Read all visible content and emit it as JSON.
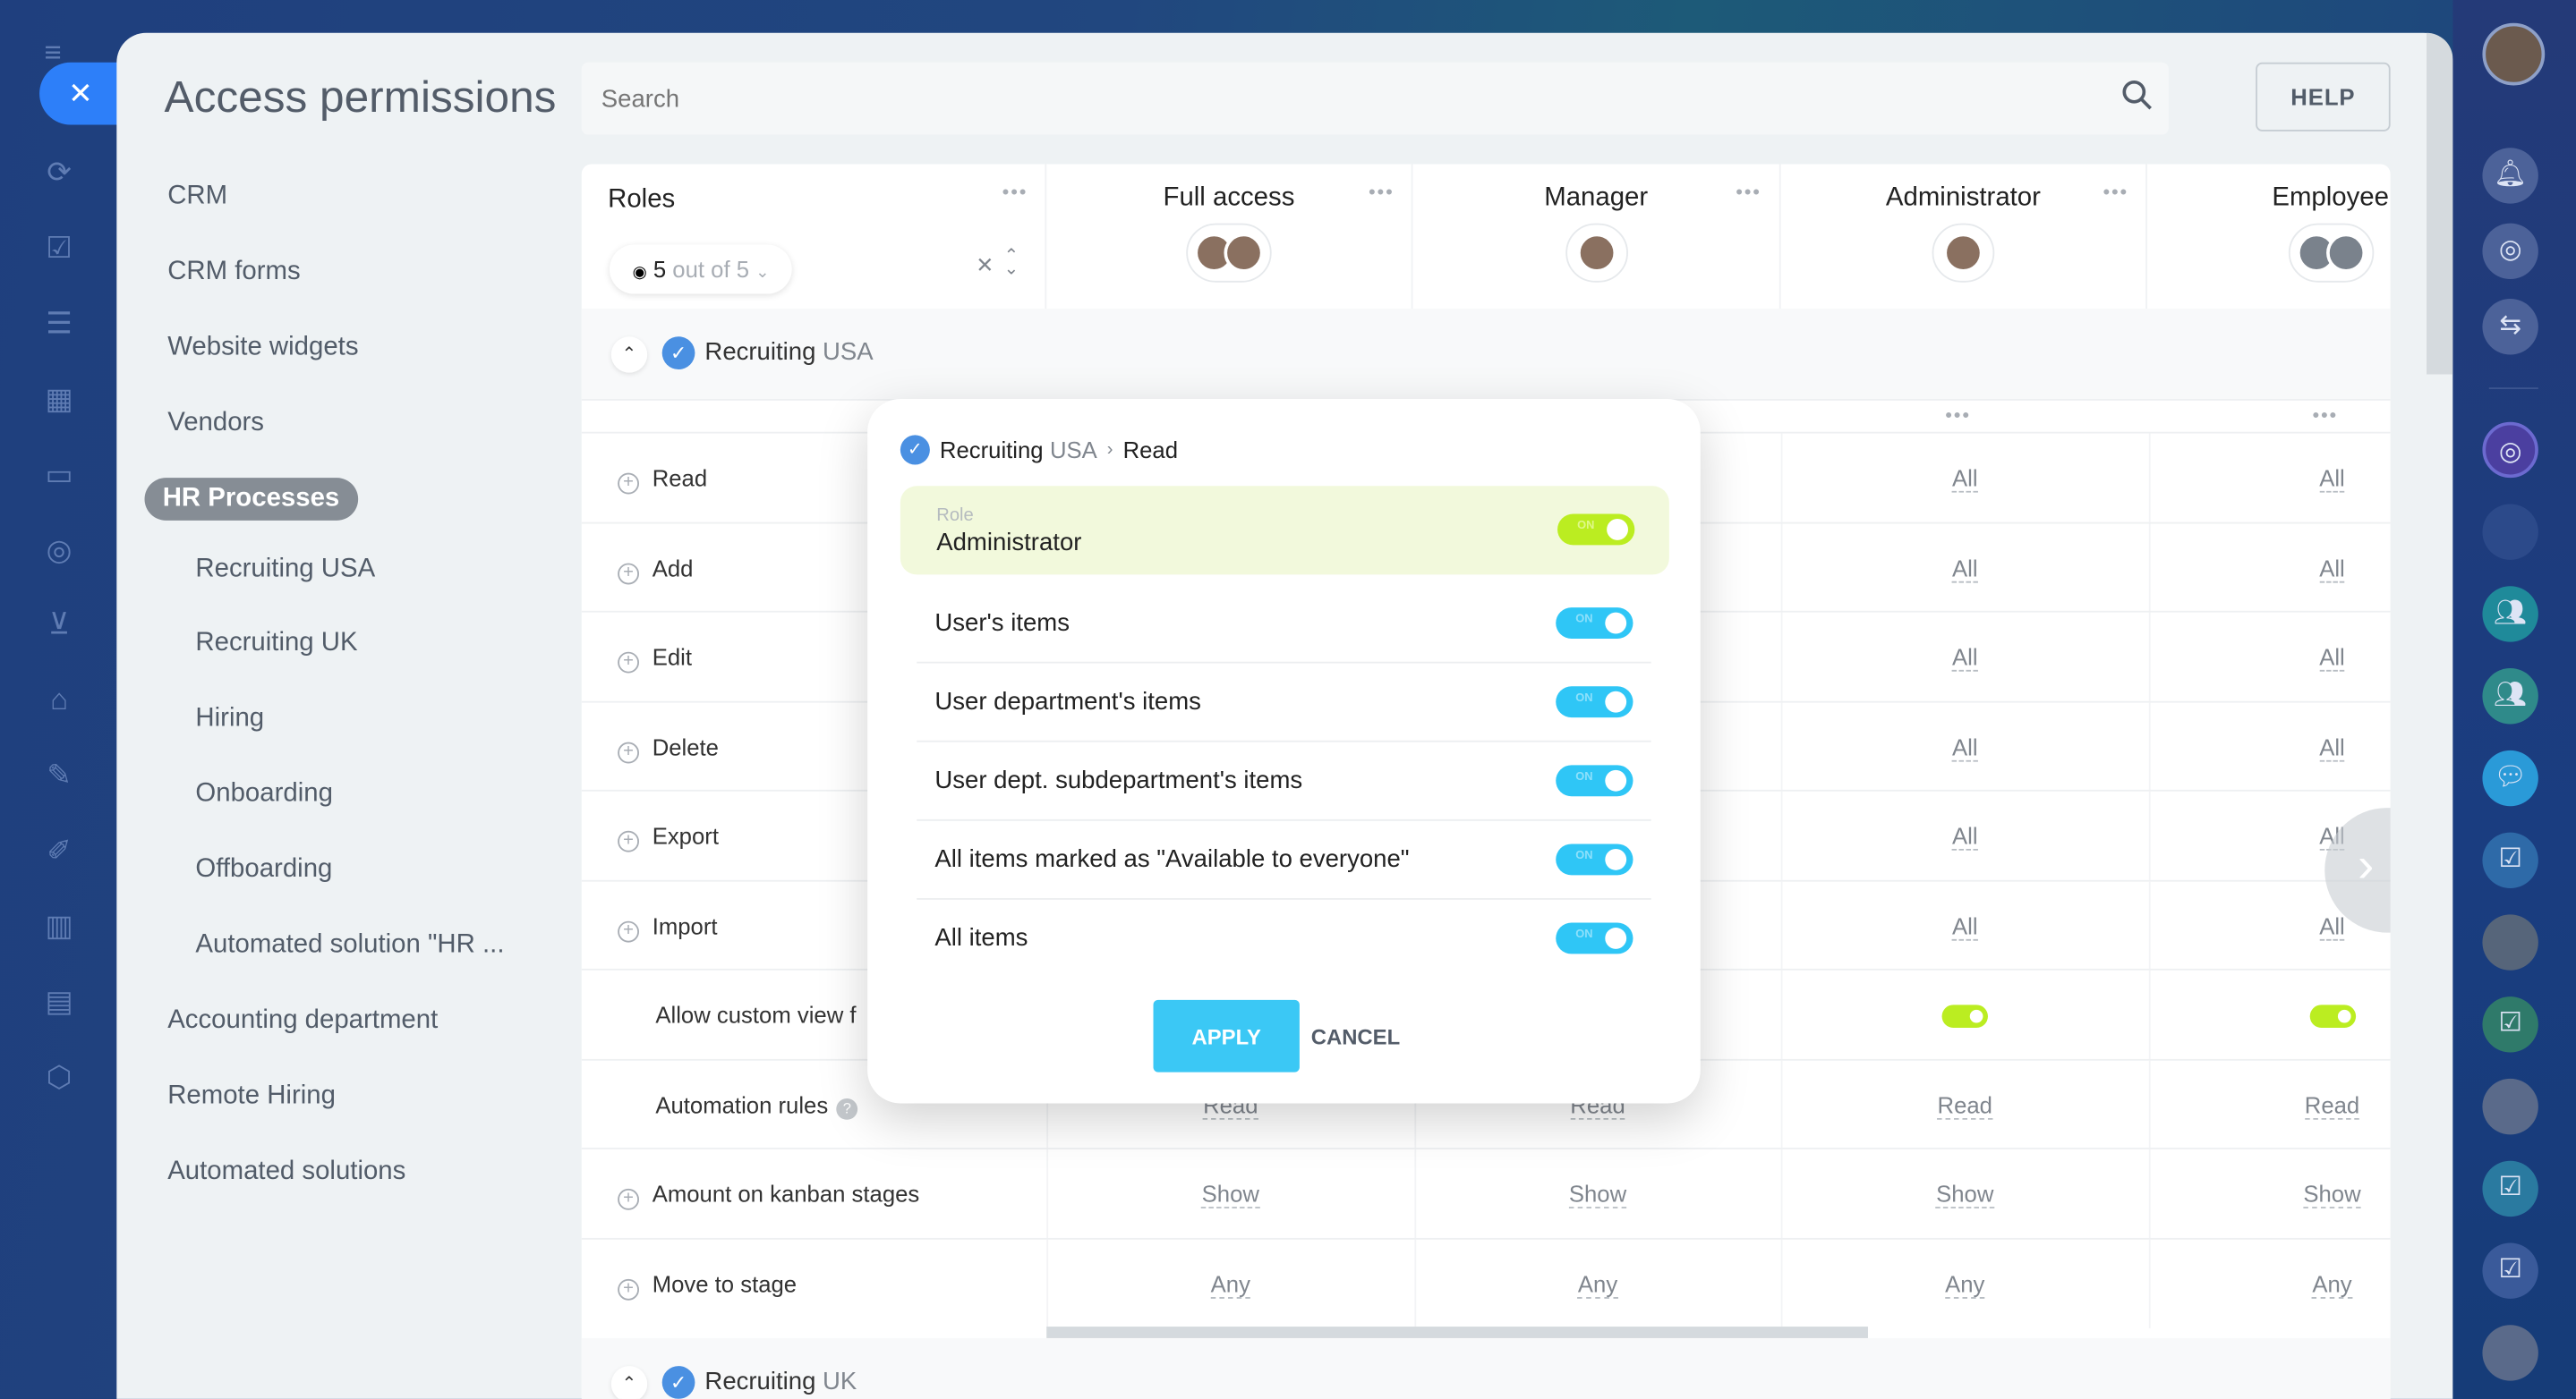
{
  "title": "Access permissions",
  "search": {
    "placeholder": "Search"
  },
  "help_label": "HELP",
  "menu": [
    {
      "label": "CRM",
      "level": 0
    },
    {
      "label": "CRM forms",
      "level": 0
    },
    {
      "label": "Website widgets",
      "level": 0
    },
    {
      "label": "Vendors",
      "level": 0
    },
    {
      "label": "HR Processes",
      "level": 0,
      "active": true
    },
    {
      "label": "Recruiting USA",
      "level": 1
    },
    {
      "label": "Recruiting UK",
      "level": 1
    },
    {
      "label": "Hiring",
      "level": 1
    },
    {
      "label": "Onboarding",
      "level": 1
    },
    {
      "label": "Offboarding",
      "level": 1
    },
    {
      "label": "Automated solution \"HR ...",
      "level": 1
    },
    {
      "label": "Accounting department",
      "level": 0
    },
    {
      "label": "Remote Hiring",
      "level": 0
    },
    {
      "label": "Automated solutions",
      "level": 0
    }
  ],
  "table": {
    "roles_label": "Roles",
    "filter": {
      "count": "5",
      "suffix": "out of 5"
    },
    "columns": [
      {
        "name": "Full access"
      },
      {
        "name": "Manager"
      },
      {
        "name": "Administrator"
      },
      {
        "name": "Employee"
      }
    ],
    "sections": [
      {
        "title": "Recruiting",
        "region": "USA"
      },
      {
        "title": "Recruiting",
        "region": "UK"
      }
    ],
    "rows": [
      {
        "label": "Read",
        "plus": true,
        "cells": [
          "",
          "",
          "All",
          "All"
        ]
      },
      {
        "label": "Add",
        "plus": true,
        "cells": [
          "",
          "",
          "All",
          "All"
        ]
      },
      {
        "label": "Edit",
        "plus": true,
        "cells": [
          "",
          "",
          "All",
          "All"
        ]
      },
      {
        "label": "Delete",
        "plus": true,
        "cells": [
          "",
          "",
          "All",
          "All"
        ]
      },
      {
        "label": "Export",
        "plus": true,
        "cells": [
          "",
          "",
          "All",
          "All"
        ]
      },
      {
        "label": "Import",
        "plus": true,
        "cells": [
          "",
          "",
          "All",
          "All"
        ]
      },
      {
        "label": "Allow custom view f",
        "plus": false,
        "cells": [
          "",
          "",
          "toggle-on",
          "toggle-on"
        ]
      },
      {
        "label": "Automation rules",
        "plus": false,
        "help": true,
        "cells": [
          "Read",
          "Read",
          "Read",
          "Read"
        ]
      },
      {
        "label": "Amount on kanban stages",
        "plus": true,
        "cells": [
          "Show",
          "Show",
          "Show",
          "Show"
        ]
      },
      {
        "label": "Move to stage",
        "plus": true,
        "cells": [
          "Any",
          "Any",
          "Any",
          "Any"
        ]
      }
    ]
  },
  "popup": {
    "breadcrumb": {
      "section": "Recruiting",
      "region": "USA",
      "action": "Read"
    },
    "role_label": "Role",
    "role_value": "Administrator",
    "toggle_text": "ON",
    "options": [
      "User's items",
      "User department's items",
      "User dept. subdepartment's items",
      "All items marked as \"Available to everyone\"",
      "All items"
    ],
    "apply": "APPLY",
    "cancel": "CANCEL"
  },
  "colors": {
    "accent": "#2fc6f6",
    "toggle_green": "#bbed21",
    "close_blue": "#2d7ff9"
  }
}
